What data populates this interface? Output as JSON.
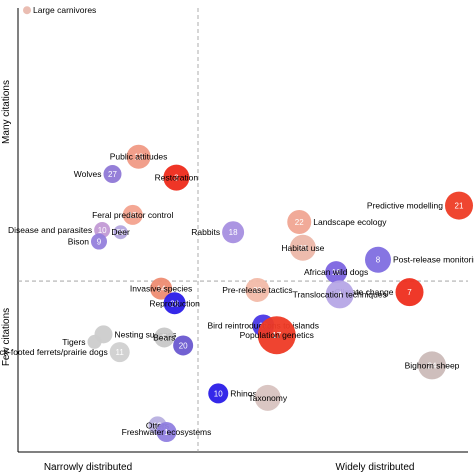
{
  "chart_data": {
    "type": "scatter",
    "title": "",
    "xlabel_left": "Narrowly distributed",
    "xlabel_right": "Widely distributed",
    "ylabel_top": "Many citations",
    "ylabel_bottom": "Few citations",
    "xlim": [
      0,
      1
    ],
    "ylim": [
      0,
      1
    ],
    "divider_x": 0.4,
    "divider_y": 0.385,
    "grid": false,
    "points": [
      {
        "id": "",
        "label": "Large carnivores",
        "x": 0.02,
        "y": 0.995,
        "size": 4,
        "color": "#e9b9ae",
        "label_side": "right"
      },
      {
        "id": "13",
        "label": "Public attitudes",
        "x": 0.268,
        "y": 0.665,
        "size": 12,
        "color": "#f09a85",
        "label_side": "center"
      },
      {
        "id": "27",
        "label": "Wolves",
        "x": 0.21,
        "y": 0.626,
        "size": 9,
        "color": "#8f78d6",
        "label_side": "left"
      },
      {
        "id": "3",
        "label": "Restoration",
        "x": 0.352,
        "y": 0.618,
        "size": 13,
        "color": "#ee2a1a",
        "label_side": "center"
      },
      {
        "id": "21",
        "label": "Predictive modelling",
        "x": 0.98,
        "y": 0.555,
        "size": 14,
        "color": "#ee3c25",
        "label_side": "left"
      },
      {
        "id": "15",
        "label": "Feral predator control",
        "x": 0.255,
        "y": 0.534,
        "size": 10,
        "color": "#f3a28e",
        "label_side": "center"
      },
      {
        "id": "22",
        "label": "Landscape ecology",
        "x": 0.625,
        "y": 0.518,
        "size": 12,
        "color": "#f0a592",
        "label_side": "right"
      },
      {
        "id": "10",
        "label": "Disease and parasites",
        "x": 0.187,
        "y": 0.5,
        "size": 8,
        "color": "#c29ad5",
        "label_side": "left"
      },
      {
        "id": "28",
        "label": "Deer",
        "x": 0.228,
        "y": 0.495,
        "size": 7,
        "color": "#b4a7df",
        "label_side": "center"
      },
      {
        "id": "18",
        "label": "Rabbits",
        "x": 0.478,
        "y": 0.495,
        "size": 11,
        "color": "#a78fe0",
        "label_side": "left"
      },
      {
        "id": "9",
        "label": "Bison",
        "x": 0.18,
        "y": 0.474,
        "size": 8,
        "color": "#9580dc",
        "label_side": "left"
      },
      {
        "id": "23",
        "label": "Habitat use",
        "x": 0.633,
        "y": 0.46,
        "size": 13,
        "color": "#ecb7a9",
        "label_side": "center"
      },
      {
        "id": "8",
        "label": "Post-release monitoring",
        "x": 0.8,
        "y": 0.433,
        "size": 13,
        "color": "#7f6ee0",
        "label_side": "right"
      },
      {
        "id": "16",
        "label": "African wild dogs",
        "x": 0.707,
        "y": 0.405,
        "size": 11,
        "color": "#7c64e0",
        "label_side": "center"
      },
      {
        "id": "14",
        "label": "Invasive species",
        "x": 0.318,
        "y": 0.368,
        "size": 11,
        "color": "#ee8c72",
        "label_side": "center"
      },
      {
        "id": "20",
        "label": "Pre-release tactics",
        "x": 0.532,
        "y": 0.365,
        "size": 12,
        "color": "#f2bba9",
        "label_side": "center"
      },
      {
        "id": "7",
        "label": "Climate change",
        "x": 0.87,
        "y": 0.36,
        "size": 14,
        "color": "#ee2e1d",
        "label_side": "left"
      },
      {
        "id": "4",
        "label": "Translocation techniques",
        "x": 0.715,
        "y": 0.355,
        "size": 14,
        "color": "#b6a6e6",
        "label_side": "center"
      },
      {
        "id": "26",
        "label": "Reproduction",
        "x": 0.348,
        "y": 0.335,
        "size": 11,
        "color": "#2a1ce8",
        "label_side": "center"
      },
      {
        "id": "19",
        "label": "Bird reintroductions to islands",
        "x": 0.545,
        "y": 0.285,
        "size": 11,
        "color": "#4a38e6",
        "label_side": "center"
      },
      {
        "id": "17",
        "label": "Population genetics",
        "x": 0.575,
        "y": 0.263,
        "size": 19,
        "color": "#ee3a25",
        "label_side": "center"
      },
      {
        "id": "",
        "label": "Nesting success",
        "x": 0.19,
        "y": 0.265,
        "size": 9,
        "color": "#cccccc",
        "label_side": "right"
      },
      {
        "id": "5",
        "label": "Bears",
        "x": 0.325,
        "y": 0.258,
        "size": 10,
        "color": "#c8c8c8",
        "label_side": "center"
      },
      {
        "id": "",
        "label": "Tigers",
        "x": 0.17,
        "y": 0.248,
        "size": 7,
        "color": "#cccccc",
        "label_side": "left"
      },
      {
        "id": "20",
        "label": "",
        "x": 0.367,
        "y": 0.24,
        "size": 10,
        "color": "#6a58d0",
        "label_side": "none"
      },
      {
        "id": "11",
        "label": "Black-footed ferrets/prairie dogs",
        "x": 0.226,
        "y": 0.225,
        "size": 10,
        "color": "#d0d0d0",
        "label_side": "left"
      },
      {
        "id": "24",
        "label": "Bighorn sheep",
        "x": 0.92,
        "y": 0.195,
        "size": 14,
        "color": "#cbbab8",
        "label_side": "center"
      },
      {
        "id": "10",
        "label": "Rhinos",
        "x": 0.445,
        "y": 0.132,
        "size": 10,
        "color": "#2a1ce8",
        "label_side": "right"
      },
      {
        "id": "",
        "label": "Taxonomy",
        "x": 0.555,
        "y": 0.122,
        "size": 13,
        "color": "#d8c3c0",
        "label_side": "center"
      },
      {
        "id": "12",
        "label": "Otters",
        "x": 0.31,
        "y": 0.06,
        "size": 9,
        "color": "#b8b0e0",
        "label_side": "center"
      },
      {
        "id": "1",
        "label": "Freshwater ecosystems",
        "x": 0.33,
        "y": 0.045,
        "size": 10,
        "color": "#9080e0",
        "label_side": "center"
      }
    ]
  }
}
